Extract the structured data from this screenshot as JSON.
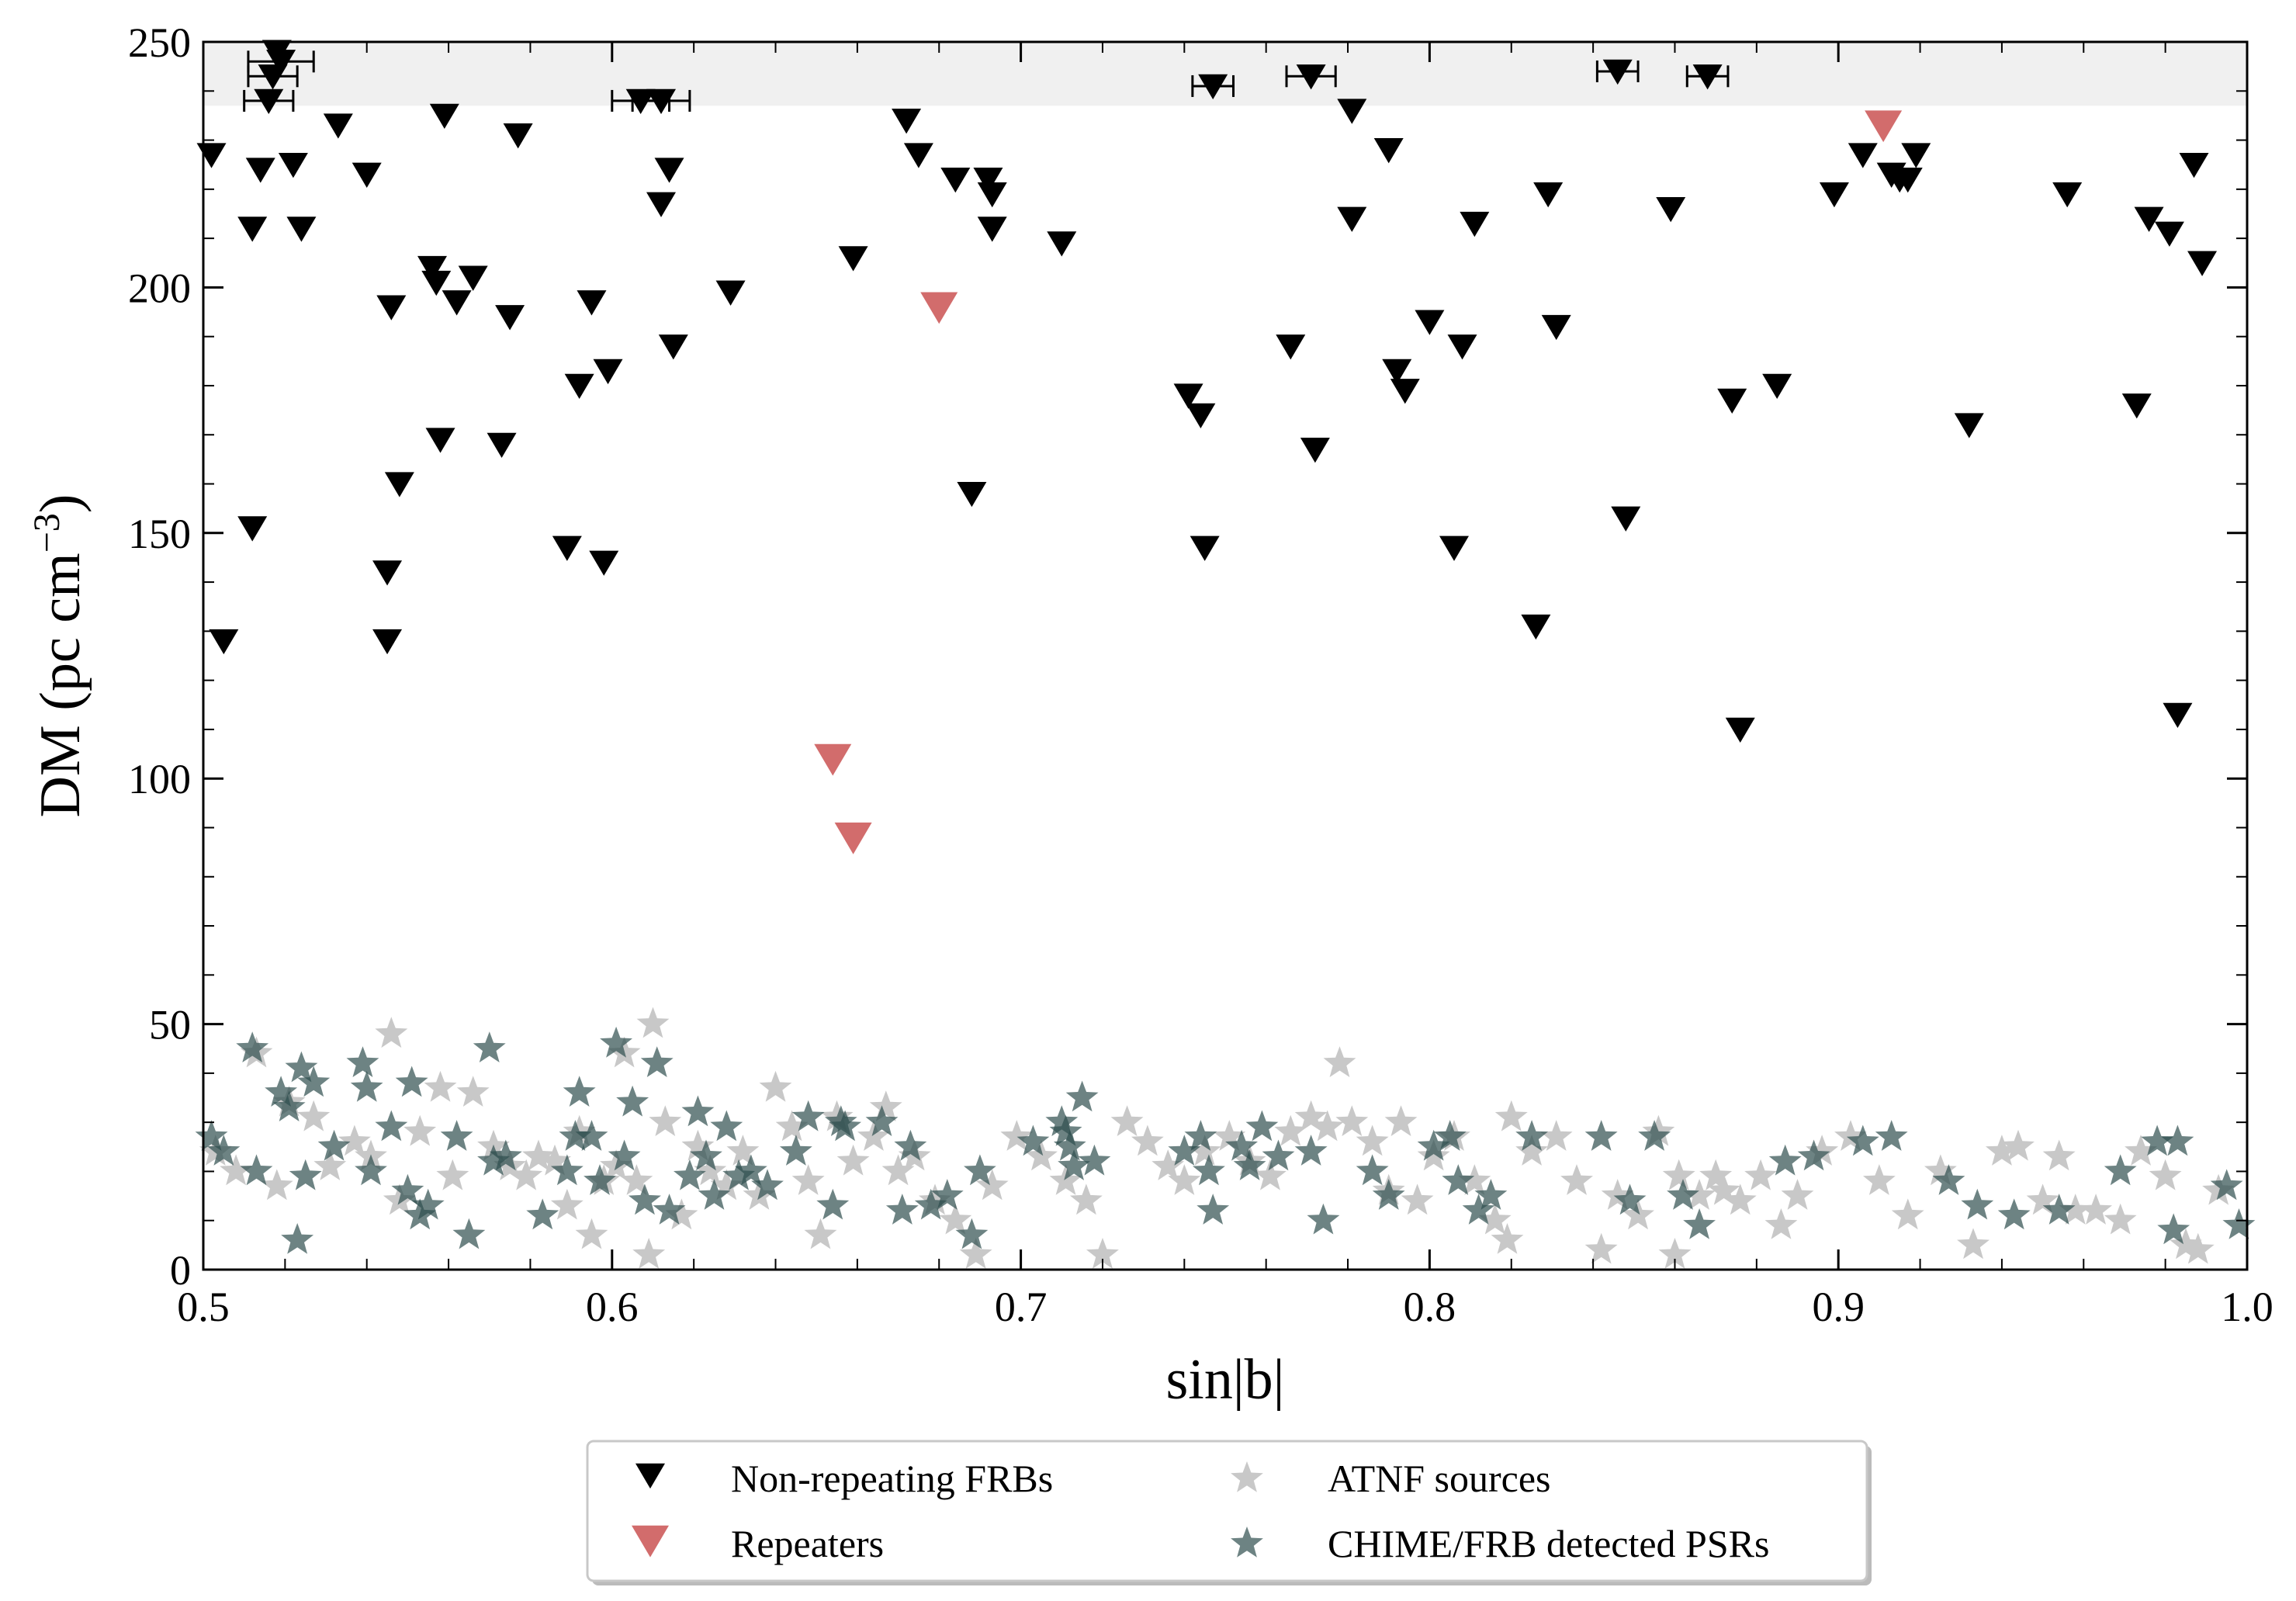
{
  "chart_data": {
    "type": "scatter",
    "title": "",
    "xlabel": "sin|b|",
    "ylabel": "DM (pc cm",
    "ylabel_sup": "−3",
    "ylabel_close": ")",
    "xlim": [
      0.5,
      1.0
    ],
    "ylim": [
      0,
      250
    ],
    "xticks": [
      0.5,
      0.6,
      0.7,
      0.8,
      0.9,
      1.0
    ],
    "xtick_labels": [
      "0.5",
      "0.6",
      "0.7",
      "0.8",
      "0.9",
      "1.0"
    ],
    "yticks": [
      0,
      50,
      100,
      150,
      200,
      250
    ],
    "ytick_labels": [
      "0",
      "50",
      "100",
      "150",
      "200",
      "250"
    ],
    "shaded_band": {
      "y_from": 237,
      "y_to": 250,
      "color": "#f0f0f0"
    },
    "colors": {
      "frb": "#000000",
      "repeater": "#cd5c5c",
      "atnf": "#c8c8c8",
      "chime_psr": "#2f4f4f"
    },
    "legend_position": "below",
    "legend": [
      {
        "label": "Non-repeating FRBs",
        "marker": "triangle-down",
        "series": "frb"
      },
      {
        "label": "ATNF sources",
        "marker": "star",
        "series": "atnf"
      },
      {
        "label": "Repeaters",
        "marker": "triangle-down",
        "series": "repeater"
      },
      {
        "label": "CHIME/FRB detected PSRs",
        "marker": "star",
        "series": "chime_psr"
      }
    ],
    "series": [
      {
        "name": "Non-repeating FRBs",
        "key": "frb",
        "marker": "triangle-down",
        "points": [
          [
            0.502,
            227
          ],
          [
            0.505,
            128
          ],
          [
            0.512,
            151
          ],
          [
            0.512,
            212
          ],
          [
            0.514,
            224
          ],
          [
            0.518,
            248
          ],
          [
            0.522,
            225
          ],
          [
            0.524,
            212
          ],
          [
            0.533,
            233
          ],
          [
            0.54,
            223
          ],
          [
            0.545,
            142
          ],
          [
            0.545,
            128
          ],
          [
            0.546,
            196
          ],
          [
            0.548,
            160
          ],
          [
            0.556,
            204
          ],
          [
            0.557,
            201
          ],
          [
            0.558,
            169
          ],
          [
            0.559,
            235
          ],
          [
            0.562,
            197
          ],
          [
            0.566,
            202
          ],
          [
            0.573,
            168
          ],
          [
            0.575,
            194
          ],
          [
            0.577,
            231
          ],
          [
            0.589,
            147
          ],
          [
            0.592,
            180
          ],
          [
            0.595,
            197
          ],
          [
            0.598,
            144
          ],
          [
            0.599,
            183
          ],
          [
            0.612,
            217
          ],
          [
            0.614,
            224
          ],
          [
            0.615,
            188
          ],
          [
            0.629,
            199
          ],
          [
            0.659,
            206
          ],
          [
            0.672,
            234
          ],
          [
            0.675,
            227
          ],
          [
            0.684,
            222
          ],
          [
            0.688,
            158
          ],
          [
            0.692,
            222
          ],
          [
            0.693,
            219
          ],
          [
            0.693,
            212
          ],
          [
            0.71,
            209
          ],
          [
            0.741,
            178
          ],
          [
            0.744,
            174
          ],
          [
            0.745,
            147
          ],
          [
            0.766,
            188
          ],
          [
            0.772,
            167
          ],
          [
            0.781,
            236
          ],
          [
            0.781,
            214
          ],
          [
            0.79,
            228
          ],
          [
            0.792,
            183
          ],
          [
            0.794,
            179
          ],
          [
            0.8,
            193
          ],
          [
            0.806,
            147
          ],
          [
            0.808,
            188
          ],
          [
            0.811,
            213
          ],
          [
            0.826,
            131
          ],
          [
            0.829,
            219
          ],
          [
            0.831,
            192
          ],
          [
            0.848,
            153
          ],
          [
            0.859,
            216
          ],
          [
            0.874,
            177
          ],
          [
            0.876,
            110
          ],
          [
            0.885,
            180
          ],
          [
            0.899,
            219
          ],
          [
            0.906,
            227
          ],
          [
            0.913,
            223
          ],
          [
            0.915,
            222
          ],
          [
            0.917,
            222
          ],
          [
            0.919,
            227
          ],
          [
            0.932,
            172
          ],
          [
            0.956,
            219
          ],
          [
            0.973,
            176
          ],
          [
            0.976,
            214
          ],
          [
            0.981,
            211
          ],
          [
            0.983,
            113
          ],
          [
            0.987,
            225
          ],
          [
            0.989,
            205
          ]
        ],
        "points_with_xerr": [
          [
            0.517,
            243,
            0.006
          ],
          [
            0.519,
            246,
            0.008
          ],
          [
            0.516,
            238,
            0.006
          ],
          [
            0.607,
            238,
            0.007
          ],
          [
            0.612,
            238,
            0.007
          ],
          [
            0.747,
            241,
            0.005
          ],
          [
            0.771,
            243,
            0.006
          ],
          [
            0.846,
            244,
            0.005
          ],
          [
            0.868,
            243,
            0.005
          ]
        ]
      },
      {
        "name": "Repeaters",
        "key": "repeater",
        "marker": "triangle-down",
        "points": [
          [
            0.68,
            196
          ],
          [
            0.654,
            104
          ],
          [
            0.659,
            88
          ],
          [
            0.911,
            233
          ]
        ]
      },
      {
        "name": "ATNF sources",
        "key": "atnf",
        "marker": "star",
        "points": [
          [
            0.503,
            24
          ],
          [
            0.508,
            20
          ],
          [
            0.513,
            44
          ],
          [
            0.518,
            17
          ],
          [
            0.521,
            34
          ],
          [
            0.527,
            31
          ],
          [
            0.531,
            21
          ],
          [
            0.537,
            26
          ],
          [
            0.541,
            23
          ],
          [
            0.546,
            48
          ],
          [
            0.548,
            14
          ],
          [
            0.553,
            28
          ],
          [
            0.558,
            37
          ],
          [
            0.561,
            19
          ],
          [
            0.566,
            36
          ],
          [
            0.571,
            25
          ],
          [
            0.575,
            21
          ],
          [
            0.579,
            19
          ],
          [
            0.582,
            23
          ],
          [
            0.586,
            22
          ],
          [
            0.589,
            13
          ],
          [
            0.592,
            28
          ],
          [
            0.595,
            7
          ],
          [
            0.598,
            18
          ],
          [
            0.601,
            21
          ],
          [
            0.603,
            44
          ],
          [
            0.606,
            18
          ],
          [
            0.609,
            3
          ],
          [
            0.61,
            50
          ],
          [
            0.613,
            30
          ],
          [
            0.617,
            11
          ],
          [
            0.621,
            25
          ],
          [
            0.624,
            20
          ],
          [
            0.628,
            17
          ],
          [
            0.632,
            24
          ],
          [
            0.636,
            15
          ],
          [
            0.64,
            37
          ],
          [
            0.644,
            29
          ],
          [
            0.648,
            18
          ],
          [
            0.651,
            7
          ],
          [
            0.655,
            31
          ],
          [
            0.659,
            22
          ],
          [
            0.664,
            27
          ],
          [
            0.667,
            33
          ],
          [
            0.67,
            20
          ],
          [
            0.674,
            23
          ],
          [
            0.679,
            14
          ],
          [
            0.684,
            10
          ],
          [
            0.689,
            3
          ],
          [
            0.693,
            17
          ],
          [
            0.699,
            27
          ],
          [
            0.705,
            23
          ],
          [
            0.711,
            18
          ],
          [
            0.716,
            14
          ],
          [
            0.72,
            3
          ],
          [
            0.726,
            30
          ],
          [
            0.731,
            26
          ],
          [
            0.736,
            21
          ],
          [
            0.74,
            18
          ],
          [
            0.745,
            24
          ],
          [
            0.751,
            27
          ],
          [
            0.756,
            22
          ],
          [
            0.761,
            19
          ],
          [
            0.766,
            28
          ],
          [
            0.771,
            31
          ],
          [
            0.775,
            29
          ],
          [
            0.778,
            42
          ],
          [
            0.781,
            30
          ],
          [
            0.786,
            26
          ],
          [
            0.79,
            16
          ],
          [
            0.793,
            30
          ],
          [
            0.797,
            14
          ],
          [
            0.801,
            23
          ],
          [
            0.806,
            27
          ],
          [
            0.811,
            18
          ],
          [
            0.816,
            10
          ],
          [
            0.819,
            6
          ],
          [
            0.82,
            31
          ],
          [
            0.825,
            24
          ],
          [
            0.831,
            27
          ],
          [
            0.836,
            18
          ],
          [
            0.842,
            4
          ],
          [
            0.846,
            15
          ],
          [
            0.851,
            11
          ],
          [
            0.856,
            28
          ],
          [
            0.86,
            3
          ],
          [
            0.861,
            19
          ],
          [
            0.866,
            15
          ],
          [
            0.87,
            19
          ],
          [
            0.872,
            16
          ],
          [
            0.876,
            14
          ],
          [
            0.881,
            19
          ],
          [
            0.886,
            9
          ],
          [
            0.89,
            15
          ],
          [
            0.896,
            24
          ],
          [
            0.903,
            27
          ],
          [
            0.91,
            18
          ],
          [
            0.917,
            11
          ],
          [
            0.925,
            20
          ],
          [
            0.933,
            5
          ],
          [
            0.94,
            24
          ],
          [
            0.944,
            25
          ],
          [
            0.95,
            14
          ],
          [
            0.954,
            23
          ],
          [
            0.958,
            12
          ],
          [
            0.963,
            12
          ],
          [
            0.969,
            10
          ],
          [
            0.974,
            24
          ],
          [
            0.98,
            19
          ],
          [
            0.985,
            5
          ],
          [
            0.988,
            4
          ],
          [
            0.993,
            16
          ]
        ]
      },
      {
        "name": "CHIME/FRB detected PSRs",
        "key": "chime_psr",
        "marker": "star",
        "points": [
          [
            0.502,
            27
          ],
          [
            0.505,
            24
          ],
          [
            0.512,
            45
          ],
          [
            0.513,
            20
          ],
          [
            0.519,
            36
          ],
          [
            0.521,
            33
          ],
          [
            0.523,
            6
          ],
          [
            0.524,
            41
          ],
          [
            0.525,
            19
          ],
          [
            0.527,
            38
          ],
          [
            0.532,
            25
          ],
          [
            0.539,
            42
          ],
          [
            0.54,
            37
          ],
          [
            0.541,
            20
          ],
          [
            0.546,
            29
          ],
          [
            0.55,
            16
          ],
          [
            0.551,
            38
          ],
          [
            0.553,
            11
          ],
          [
            0.555,
            13
          ],
          [
            0.562,
            27
          ],
          [
            0.565,
            7
          ],
          [
            0.57,
            45
          ],
          [
            0.571,
            22
          ],
          [
            0.574,
            23
          ],
          [
            0.583,
            11
          ],
          [
            0.589,
            20
          ],
          [
            0.591,
            27
          ],
          [
            0.592,
            36
          ],
          [
            0.595,
            27
          ],
          [
            0.597,
            18
          ],
          [
            0.601,
            46
          ],
          [
            0.603,
            23
          ],
          [
            0.605,
            34
          ],
          [
            0.608,
            14
          ],
          [
            0.611,
            42
          ],
          [
            0.614,
            12
          ],
          [
            0.619,
            19
          ],
          [
            0.621,
            32
          ],
          [
            0.623,
            23
          ],
          [
            0.625,
            15
          ],
          [
            0.628,
            29
          ],
          [
            0.631,
            19
          ],
          [
            0.634,
            20
          ],
          [
            0.638,
            17
          ],
          [
            0.645,
            24
          ],
          [
            0.648,
            31
          ],
          [
            0.654,
            13
          ],
          [
            0.656,
            30
          ],
          [
            0.657,
            29
          ],
          [
            0.666,
            30
          ],
          [
            0.671,
            12
          ],
          [
            0.673,
            25
          ],
          [
            0.678,
            13
          ],
          [
            0.682,
            15
          ],
          [
            0.688,
            7
          ],
          [
            0.69,
            20
          ],
          [
            0.703,
            26
          ],
          [
            0.71,
            30
          ],
          [
            0.711,
            28
          ],
          [
            0.712,
            25
          ],
          [
            0.713,
            21
          ],
          [
            0.715,
            35
          ],
          [
            0.718,
            22
          ],
          [
            0.74,
            24
          ],
          [
            0.744,
            27
          ],
          [
            0.746,
            20
          ],
          [
            0.747,
            12
          ],
          [
            0.754,
            25
          ],
          [
            0.756,
            21
          ],
          [
            0.759,
            29
          ],
          [
            0.763,
            23
          ],
          [
            0.771,
            24
          ],
          [
            0.774,
            10
          ],
          [
            0.786,
            20
          ],
          [
            0.79,
            15
          ],
          [
            0.801,
            25
          ],
          [
            0.805,
            27
          ],
          [
            0.807,
            18
          ],
          [
            0.812,
            12
          ],
          [
            0.815,
            15
          ],
          [
            0.825,
            27
          ],
          [
            0.842,
            27
          ],
          [
            0.849,
            14
          ],
          [
            0.855,
            27
          ],
          [
            0.862,
            15
          ],
          [
            0.866,
            9
          ],
          [
            0.887,
            22
          ],
          [
            0.894,
            23
          ],
          [
            0.906,
            26
          ],
          [
            0.913,
            27
          ],
          [
            0.927,
            18
          ],
          [
            0.934,
            13
          ],
          [
            0.943,
            11
          ],
          [
            0.954,
            12
          ],
          [
            0.969,
            20
          ],
          [
            0.978,
            26
          ],
          [
            0.982,
            8
          ],
          [
            0.983,
            26
          ],
          [
            0.995,
            17
          ],
          [
            0.998,
            9
          ]
        ]
      }
    ]
  }
}
